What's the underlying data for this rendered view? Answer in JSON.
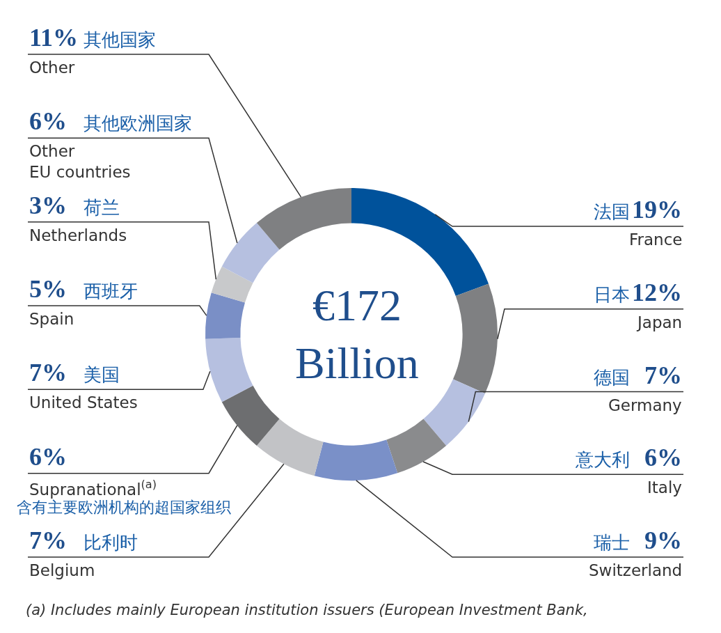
{
  "chart_data": {
    "type": "donut",
    "categories": [
      "France",
      "Japan",
      "Germany",
      "Italy",
      "Switzerland",
      "Belgium",
      "Supranational$^{(a)}$",
      "United States",
      "Spain",
      "Netherlands",
      "Other\nEU countries",
      "Other"
    ],
    "values": [
      19,
      12,
      7,
      6,
      9,
      7,
      6,
      7,
      5,
      3,
      6,
      11
    ],
    "value_labels": [
      "19%",
      "12%",
      "7%",
      "6%",
      "9%",
      "7%",
      "6%",
      "7%",
      "5%",
      "3%",
      "6%",
      "11%"
    ],
    "colors": [
      "#00529b",
      "#7f8082",
      "#b6c0e0",
      "#8a8b8d",
      "#7a90c8",
      "#c2c3c6",
      "#6d6e70",
      "#b6c0e0",
      "#7a8fc6",
      "#c8c9cb",
      "#b6c0e0",
      "#7f8082"
    ],
    "legend": false,
    "annotations": [
      "法国",
      "日本",
      "德国",
      "意大利",
      "瑞士",
      "比利时",
      "含有主要欧洲机构的超国家组织",
      "美国",
      "西班牙",
      "荷兰",
      "其他欧洲国家",
      "其他国家",
      "€172 Billion",
      "(a) Includes mainly European institution issuers (European Investment Bank,"
    ]
  }
}
